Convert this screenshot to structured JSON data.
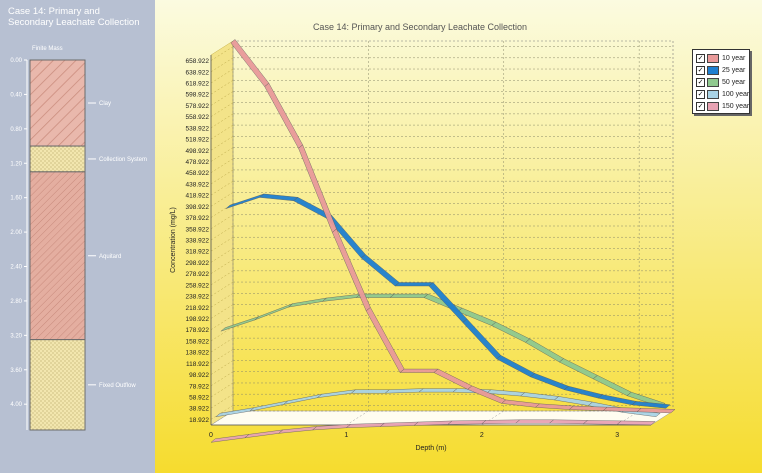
{
  "left_panel": {
    "title_line1": "Case 14:  Primary and",
    "title_line2": "Secondary Leachate Collection",
    "column_header": "Finite Mass",
    "depth_ticks": [
      "0.00",
      "0.40",
      "0.80",
      "1.20",
      "1.60",
      "2.00",
      "2.40",
      "2.80",
      "3.20",
      "3.60",
      "4.00"
    ],
    "layers": [
      {
        "name": "Clay",
        "top": 0.0,
        "bottom": 1.0,
        "pattern": "hatch",
        "color": "#e9b8ac"
      },
      {
        "name": "Collection System",
        "top": 1.0,
        "bottom": 1.3,
        "pattern": "dots",
        "color": "#f2e6ae"
      },
      {
        "name": "Aquitard",
        "top": 1.3,
        "bottom": 3.25,
        "pattern": "hatch",
        "color": "#e4aea0"
      },
      {
        "name": "Fixed Outflow",
        "top": 3.25,
        "bottom": 4.3,
        "pattern": "dots",
        "color": "#efe2aa"
      }
    ]
  },
  "chart": {
    "title": "Case 14:  Primary and Secondary Leachate Collection",
    "xlabel": "Depth (m)",
    "ylabel": "Concentration (mg/L)"
  },
  "chart_data": {
    "type": "line",
    "title": "Case 14:  Primary and Secondary Leachate Collection",
    "xlabel": "Depth (m)",
    "ylabel": "Concentration (mg/L)",
    "xlim": [
      0,
      3.25
    ],
    "ylim": [
      8.922,
      668.922
    ],
    "x_ticks": [
      "0",
      "1",
      "2",
      "3"
    ],
    "y_ticks": [
      "18.922",
      "38.922",
      "58.922",
      "78.922",
      "98.922",
      "118.922",
      "138.922",
      "158.922",
      "178.922",
      "198.922",
      "218.922",
      "238.922",
      "258.922",
      "278.922",
      "298.922",
      "318.922",
      "338.922",
      "358.922",
      "378.922",
      "398.922",
      "418.922",
      "438.922",
      "458.922",
      "478.922",
      "498.922",
      "518.922",
      "538.922",
      "558.922",
      "578.922",
      "598.922",
      "618.922",
      "638.922",
      "658.922"
    ],
    "legend_position": "top-right",
    "grid": true,
    "series": [
      {
        "name": "10 year",
        "color": "#e99a9a",
        "x": [
          0,
          0.25,
          0.5,
          0.75,
          1.0,
          1.25,
          1.5,
          1.75,
          2.0,
          2.25,
          2.5,
          2.75,
          3.0,
          3.25
        ],
        "y": [
          668,
          590,
          480,
          330,
          190,
          80,
          80,
          50,
          25,
          18,
          14,
          12,
          10,
          8
        ]
      },
      {
        "name": "25 year",
        "color": "#1e7fd0",
        "x": [
          0,
          0.25,
          0.5,
          0.75,
          1.0,
          1.25,
          1.5,
          1.75,
          2.0,
          2.25,
          2.5,
          2.75,
          3.0,
          3.25
        ],
        "y": [
          378,
          398,
          392,
          360,
          290,
          240,
          240,
          175,
          110,
          78,
          55,
          40,
          28,
          22
        ]
      },
      {
        "name": "50 year",
        "color": "#8fc98f",
        "x": [
          0,
          0.25,
          0.5,
          0.75,
          1.0,
          1.25,
          1.5,
          1.75,
          2.0,
          2.25,
          2.5,
          2.75,
          3.0,
          3.25
        ],
        "y": [
          165,
          185,
          208,
          218,
          225,
          225,
          225,
          200,
          175,
          145,
          110,
          80,
          50,
          30
        ]
      },
      {
        "name": "100 year",
        "color": "#a9d3e6",
        "x": [
          0,
          0.25,
          0.5,
          0.75,
          1.0,
          1.25,
          1.5,
          1.75,
          2.0,
          2.25,
          2.5,
          2.75,
          3.0,
          3.25
        ],
        "y": [
          18,
          28,
          40,
          52,
          60,
          60,
          62,
          62,
          60,
          55,
          48,
          38,
          26,
          18
        ]
      },
      {
        "name": "150 year",
        "color": "#e8a3b4",
        "x": [
          0,
          0.25,
          0.5,
          0.75,
          1.0,
          1.25,
          1.5,
          1.75,
          2.0,
          2.25,
          2.5,
          2.75,
          3.0,
          3.25
        ],
        "y": [
          -22,
          -14,
          -6,
          0,
          4,
          6,
          8,
          10,
          11,
          12,
          12,
          11,
          10,
          9
        ]
      }
    ]
  },
  "colors": {
    "left_panel_bg": "#b7c0d2",
    "chart_bg_top": "#fbfbe0",
    "chart_bg_bottom": "#f6dc2e",
    "left_wall": "#f3e389"
  }
}
